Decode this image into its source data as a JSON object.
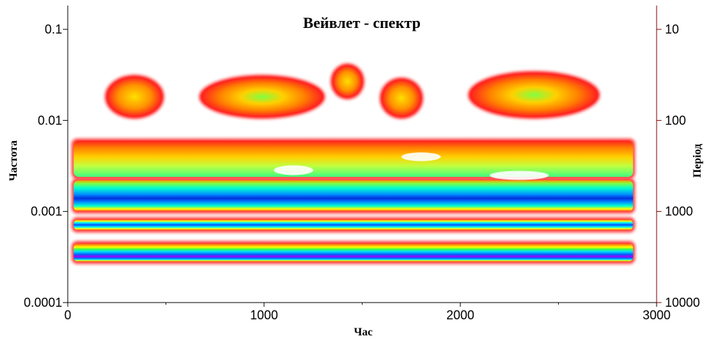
{
  "chart_data": {
    "type": "heatmap",
    "title": "Вейвлет - спектр",
    "xlabel": "Час",
    "ylabel_left": "Частота",
    "ylabel_right": "Період",
    "x_ticks": [
      "0",
      "1000",
      "2000",
      "3000"
    ],
    "x_tick_values": [
      0,
      1000,
      2000,
      3000
    ],
    "xlim": [
      0,
      3000
    ],
    "y_left_ticks": [
      "0.1",
      "0.01",
      "0.001",
      "0.0001"
    ],
    "y_left_tick_values": [
      0.1,
      0.01,
      0.001,
      0.0001
    ],
    "ylim_left": [
      0.0001,
      0.17
    ],
    "y_left_scale": "log",
    "y_right_ticks": [
      "10",
      "100",
      "1000",
      "10000"
    ],
    "y_right_tick_values": [
      10,
      100,
      1000,
      10000
    ],
    "y_right_scale": "log",
    "colorscale": [
      "#ffffff",
      "#ff0000",
      "#ff8000",
      "#ffff00",
      "#00ff00",
      "#00ffff",
      "#0080ff",
      "#0000ff",
      "#8000ff"
    ],
    "regions": [
      {
        "name": "band-0.00035",
        "x": [
          30,
          2880
        ],
        "freq": [
          0.00028,
          0.00045
        ],
        "intensity": 1.0
      },
      {
        "name": "band-0.0007",
        "x": [
          30,
          2880
        ],
        "freq": [
          0.00062,
          0.00082
        ],
        "intensity": 0.9
      },
      {
        "name": "band-0.0015",
        "x": [
          30,
          2880
        ],
        "freq": [
          0.001,
          0.0022
        ],
        "intensity": 0.85
      },
      {
        "name": "band-0.004",
        "x": [
          30,
          2880
        ],
        "freq": [
          0.0024,
          0.006
        ],
        "intensity": 0.45
      },
      {
        "name": "blob-1",
        "x": [
          200,
          480
        ],
        "freq": [
          0.011,
          0.03
        ],
        "intensity": 0.25
      },
      {
        "name": "blob-2",
        "x": [
          680,
          1300
        ],
        "freq": [
          0.011,
          0.03
        ],
        "intensity": 0.35
      },
      {
        "name": "blob-3",
        "x": [
          1350,
          1500
        ],
        "freq": [
          0.018,
          0.04
        ],
        "intensity": 0.25
      },
      {
        "name": "blob-4",
        "x": [
          1600,
          1800
        ],
        "freq": [
          0.011,
          0.028
        ],
        "intensity": 0.25
      },
      {
        "name": "blob-5",
        "x": [
          2050,
          2700
        ],
        "freq": [
          0.011,
          0.033
        ],
        "intensity": 0.35
      }
    ]
  }
}
